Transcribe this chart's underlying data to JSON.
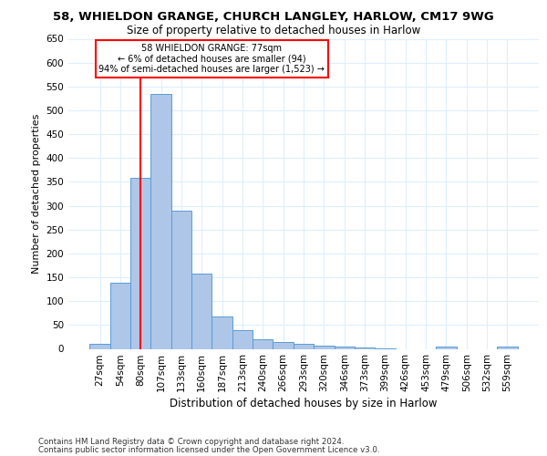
{
  "title_line1": "58, WHIELDON GRANGE, CHURCH LANGLEY, HARLOW, CM17 9WG",
  "title_line2": "Size of property relative to detached houses in Harlow",
  "xlabel": "Distribution of detached houses by size in Harlow",
  "ylabel": "Number of detached properties",
  "footer_line1": "Contains HM Land Registry data © Crown copyright and database right 2024.",
  "footer_line2": "Contains public sector information licensed under the Open Government Licence v3.0.",
  "categories": [
    "27sqm",
    "54sqm",
    "80sqm",
    "107sqm",
    "133sqm",
    "160sqm",
    "187sqm",
    "213sqm",
    "240sqm",
    "266sqm",
    "293sqm",
    "320sqm",
    "346sqm",
    "373sqm",
    "399sqm",
    "426sqm",
    "453sqm",
    "479sqm",
    "506sqm",
    "532sqm",
    "559sqm"
  ],
  "values": [
    10,
    138,
    358,
    535,
    290,
    157,
    67,
    40,
    20,
    14,
    10,
    7,
    4,
    2,
    1,
    0,
    0,
    4,
    0,
    0,
    4
  ],
  "bar_color": "#aec6e8",
  "bar_edge_color": "#5b9bd5",
  "grid_color": "#ddeeff",
  "annotation_box_text_line1": "58 WHIELDON GRANGE: 77sqm",
  "annotation_box_text_line2": "← 6% of detached houses are smaller (94)",
  "annotation_box_text_line3": "94% of semi-detached houses are larger (1,523) →",
  "vline_x": 2,
  "ylim": [
    0,
    650
  ],
  "yticks": [
    0,
    50,
    100,
    150,
    200,
    250,
    300,
    350,
    400,
    450,
    500,
    550,
    600,
    650
  ],
  "background_color": "#ffffff"
}
